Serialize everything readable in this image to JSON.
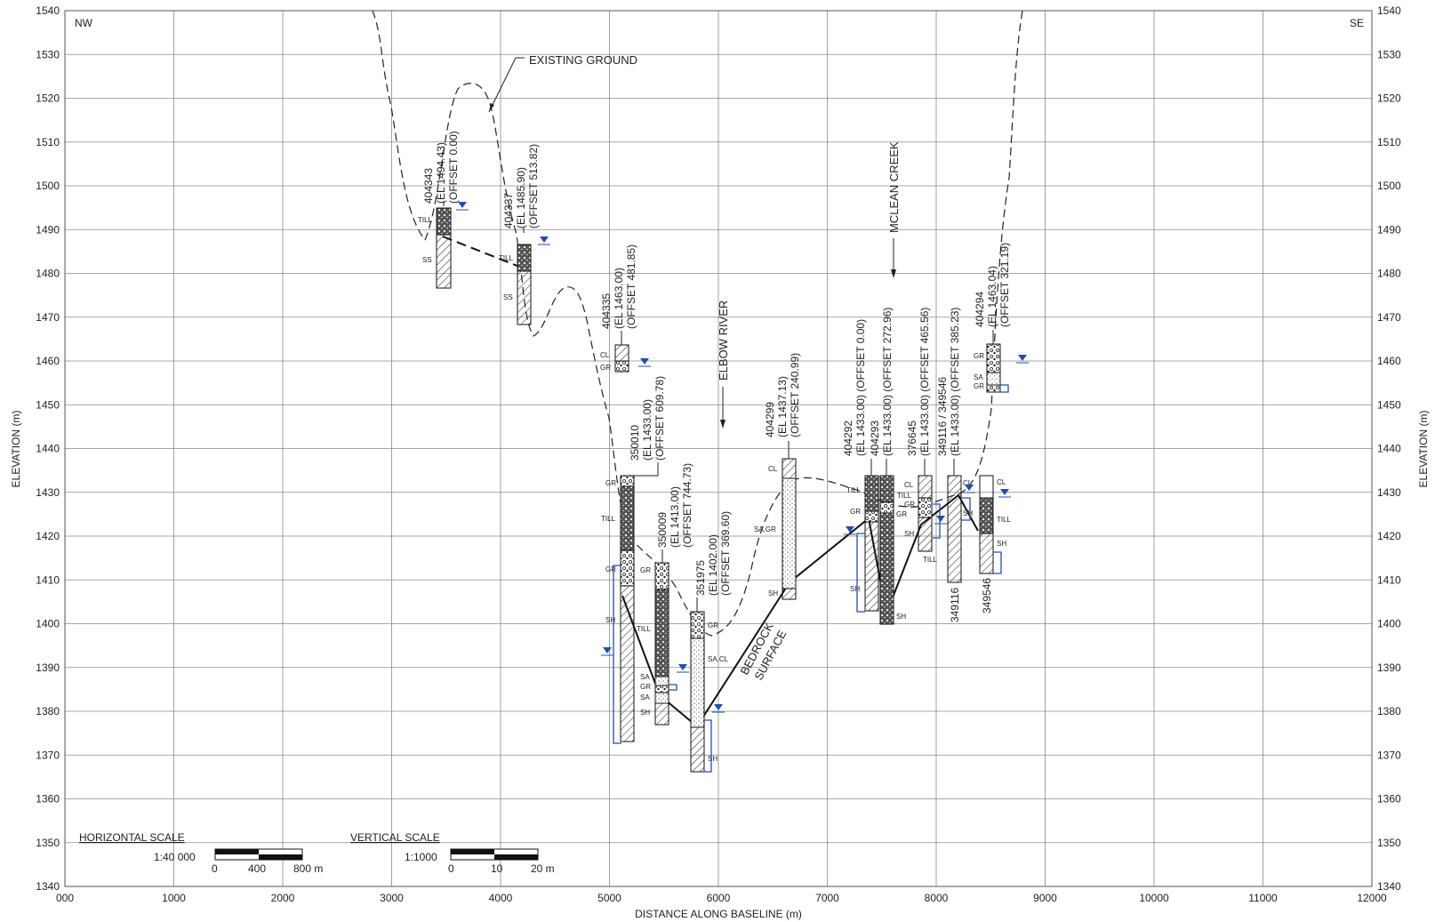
{
  "orientation": {
    "left": "NW",
    "right": "SE"
  },
  "axes": {
    "x_label": "DISTANCE ALONG BASELINE (m)",
    "y_label": "ELEVATION (m)",
    "x_ticks": [
      "000",
      "1000",
      "2000",
      "3000",
      "4000",
      "5000",
      "6000",
      "7000",
      "8000",
      "9000",
      "10000",
      "11000",
      "12000"
    ],
    "y_ticks": [
      "1540",
      "1530",
      "1520",
      "1510",
      "1500",
      "1490",
      "1480",
      "1470",
      "1460",
      "1450",
      "1440",
      "1430",
      "1420",
      "1410",
      "1400",
      "1390",
      "1380",
      "1370",
      "1360",
      "1350",
      "1340"
    ]
  },
  "annotations": {
    "existing_ground": "EXISTING  GROUND",
    "elbow_river": "ELBOW  RIVER",
    "mclean_creek": "MCLEAN  CREEK",
    "bedrock_1": "BEDROCK",
    "bedrock_2": "SURFACE"
  },
  "boreholes": [
    {
      "id": "404343",
      "el": "(EL 1494.43)",
      "offset": "(OFFSET 0.00)"
    },
    {
      "id": "404337",
      "el": "(EL 1485.90)",
      "offset": "(OFFSET 513.82)"
    },
    {
      "id": "404335",
      "el": "(EL 1463.00)",
      "offset": "(OFFSET 481.85)"
    },
    {
      "id": "350010",
      "el": "(EL 1433.00)",
      "offset": "(OFFSET 609.78)"
    },
    {
      "id": "350009",
      "el": "(EL 1413.00)",
      "offset": "(OFFSET 744.73)"
    },
    {
      "id": "351975",
      "el": "(EL 1402.00)",
      "offset": "(OFFSET 369.60)"
    },
    {
      "id": "404299",
      "el": "(EL 1437.13)",
      "offset": "(OFFSET 240.99)"
    },
    {
      "id": "404292",
      "el": "(EL 1433.00) (OFFSET 0.00)"
    },
    {
      "id": "404293",
      "el": "(EL 1433.00) (OFFSET 272.96)"
    },
    {
      "id": "376645",
      "el": "(EL 1433.00) (OFFSET 465.56)"
    },
    {
      "id": "349116 / 349546",
      "el": "(EL 1433.00) (OFFSET 385.23)"
    },
    {
      "id": "404294",
      "el": "(EL 1463.04)",
      "offset": "(OFFSET 321.19)"
    }
  ],
  "bottom_ids": [
    "349116",
    "349546"
  ],
  "soil_labels": {
    "till": "TILL",
    "ss": "SS",
    "cl": "CL",
    "gr": "GR",
    "sh": "SH",
    "sa": "SA",
    "sa_gr": "SA,GR",
    "sa_cl": "SA,CL"
  },
  "scales": {
    "horizontal": {
      "title": "HORIZONTAL SCALE",
      "ratio": "1:40  000",
      "t0": "0",
      "t1": "400",
      "t2": "800 m"
    },
    "vertical": {
      "title": "VERTICAL SCALE",
      "ratio": "1:1000",
      "t0": "0",
      "t1": "10",
      "t2": "20 m"
    }
  },
  "colors": {
    "grid": "#8a8a8a",
    "line": "#1a1a1a",
    "water": "#1f4fb0"
  }
}
